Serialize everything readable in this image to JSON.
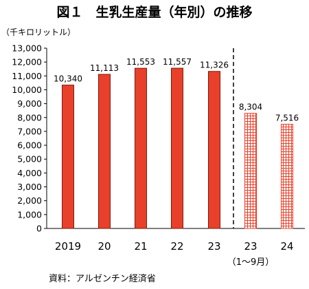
{
  "chart_data": {
    "type": "bar",
    "title": "図１　生乳生産量（年別）の推移",
    "unit_label": "（千キロリットル）",
    "categories": [
      "2019",
      "20",
      "21",
      "22",
      "23",
      "23",
      "24"
    ],
    "category_sublabels": [
      "",
      "",
      "",
      "",
      "",
      "（1〜9月）",
      ""
    ],
    "values": [
      10340,
      11113,
      11553,
      11557,
      11326,
      8304,
      7516
    ],
    "value_labels": [
      "10,340",
      "11,113",
      "11,553",
      "11,557",
      "11,326",
      "8,304",
      "7,516"
    ],
    "bar_style": [
      "solid",
      "solid",
      "solid",
      "solid",
      "solid",
      "hatched",
      "hatched"
    ],
    "ylim": [
      0,
      13000
    ],
    "y_ticks": [
      "0",
      "1,000",
      "2,000",
      "3,000",
      "4,000",
      "5,000",
      "6,000",
      "7,000",
      "8,000",
      "9,000",
      "10,000",
      "11,000",
      "12,000",
      "13,000"
    ],
    "grid": false,
    "divider": "dashed line between full-year and January–September bars",
    "colors": {
      "bar": "#e8402a",
      "bar_edge": "#7a1a0e",
      "hatch": "#e8402a"
    },
    "source": "資料：アルゼンチン経済省"
  }
}
